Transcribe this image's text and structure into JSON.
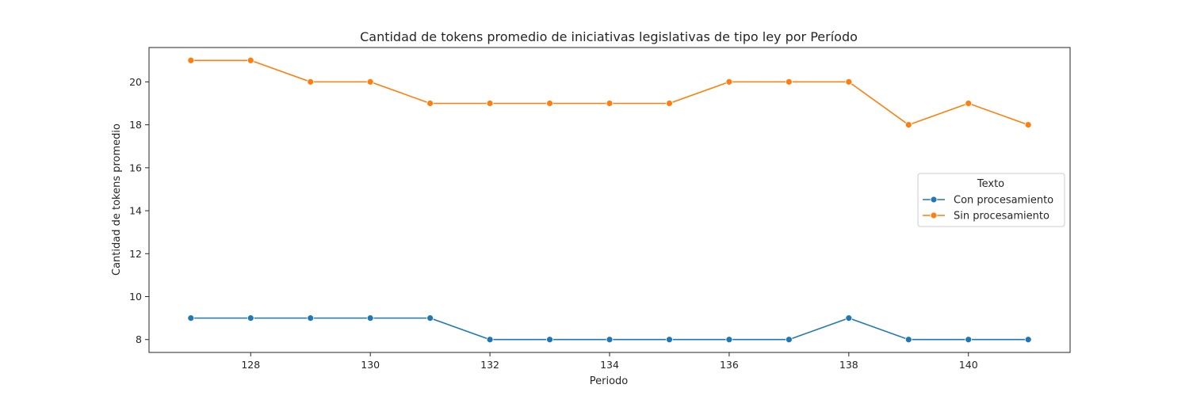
{
  "chart_data": {
    "type": "line",
    "title": "Cantidad de tokens promedio de iniciativas legislativas de tipo ley por Período",
    "xlabel": "Periodo",
    "ylabel": "Cantidad de tokens promedio",
    "x": [
      127,
      128,
      129,
      130,
      131,
      132,
      133,
      134,
      135,
      136,
      137,
      138,
      139,
      140,
      141
    ],
    "xlim": [
      126.3,
      141.7
    ],
    "ylim": [
      7.4,
      21.6
    ],
    "xticks": [
      128,
      130,
      132,
      134,
      136,
      138,
      140
    ],
    "yticks": [
      8,
      10,
      12,
      14,
      16,
      18,
      20
    ],
    "grid": false,
    "legend": {
      "title": "Texto",
      "placement": "center-right"
    },
    "series": [
      {
        "name": "Con procesamiento",
        "color": "#1f77b4",
        "marker": "circle",
        "values": [
          9,
          9,
          9,
          9,
          9,
          8,
          8,
          8,
          8,
          8,
          8,
          9,
          8,
          8,
          8
        ]
      },
      {
        "name": "Sin procesamiento",
        "color": "#ff7f0e",
        "marker": "circle",
        "values": [
          21,
          21,
          20,
          20,
          19,
          19,
          19,
          19,
          19,
          20,
          20,
          20,
          18,
          19,
          18
        ]
      }
    ]
  }
}
